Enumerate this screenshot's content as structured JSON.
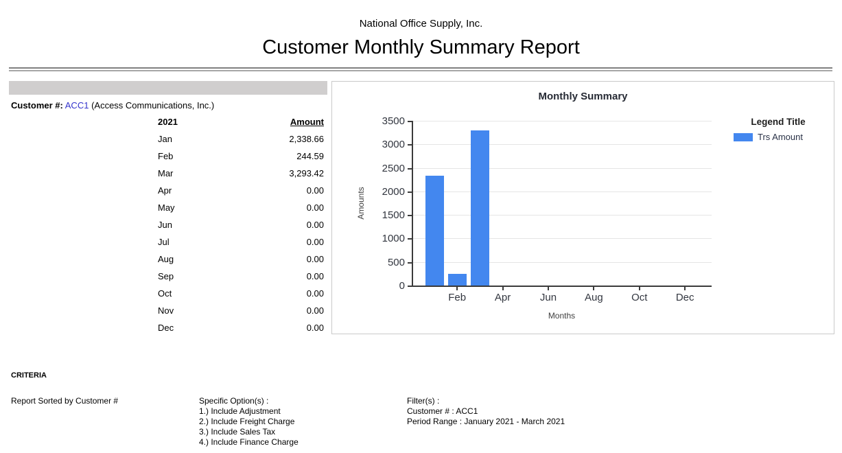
{
  "report": {
    "company": "National Office Supply, Inc.",
    "title": "Customer Monthly Summary Report"
  },
  "customer": {
    "label": "Customer #:",
    "number": "ACC1",
    "name_suffix": "(Access Communications, Inc.)"
  },
  "table": {
    "year_header": "2021",
    "amount_header": "Amount",
    "rows": [
      {
        "month": "Jan",
        "amount": "2,338.66"
      },
      {
        "month": "Feb",
        "amount": "244.59"
      },
      {
        "month": "Mar",
        "amount": "3,293.42"
      },
      {
        "month": "Apr",
        "amount": "0.00"
      },
      {
        "month": "May",
        "amount": "0.00"
      },
      {
        "month": "Jun",
        "amount": "0.00"
      },
      {
        "month": "Jul",
        "amount": "0.00"
      },
      {
        "month": "Aug",
        "amount": "0.00"
      },
      {
        "month": "Sep",
        "amount": "0.00"
      },
      {
        "month": "Oct",
        "amount": "0.00"
      },
      {
        "month": "Nov",
        "amount": "0.00"
      },
      {
        "month": "Dec",
        "amount": "0.00"
      }
    ]
  },
  "chart_data": {
    "type": "bar",
    "title": "Monthly Summary",
    "categories": [
      "Jan",
      "Feb",
      "Mar",
      "Apr",
      "May",
      "Jun",
      "Jul",
      "Aug",
      "Sep",
      "Oct",
      "Nov",
      "Dec"
    ],
    "values": [
      2338.66,
      244.59,
      3293.42,
      0,
      0,
      0,
      0,
      0,
      0,
      0,
      0,
      0
    ],
    "series_name": "Trs Amount",
    "legend_title": "Legend Title",
    "legend_position": "right",
    "xlabel": "Months",
    "ylabel": "Amounts",
    "ylim": [
      0,
      3500
    ],
    "ytick_step": 500,
    "x_tick_labels": [
      "Feb",
      "Apr",
      "Jun",
      "Aug",
      "Oct",
      "Dec"
    ],
    "grid": true,
    "bar_color": "#4387ef"
  },
  "criteria": {
    "heading": "CRITERIA",
    "sorted_by": "Report Sorted by Customer #",
    "specific_options_label": "Specific Option(s) :",
    "specific_options": [
      "1.) Include Adjustment",
      "2.) Include Freight Charge",
      "3.) Include Sales Tax",
      "4.) Include Finance Charge"
    ],
    "filters_label": "Filter(s) :",
    "filters": [
      "Customer # : ACC1",
      "Period Range : January 2021 - March 2021"
    ]
  },
  "colors": {
    "bar_blue": "#4387ef",
    "link_blue": "#3333cc",
    "band_gray": "#d0cece",
    "grid_gray": "#e5e5e5",
    "axis_dark": "#3a3a3a",
    "panel_border": "#c9c9c9",
    "rule_dark": "#7f7f7f",
    "rule_light": "#a6a6a6"
  }
}
